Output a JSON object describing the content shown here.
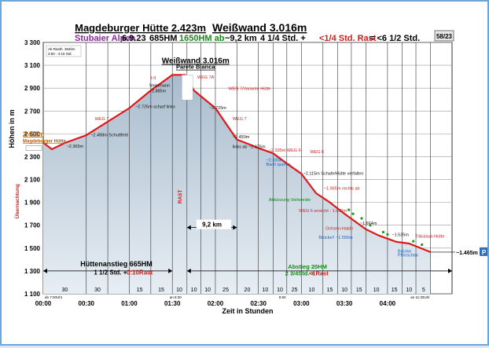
{
  "header": {
    "title_part1": "Magdeburger Hütte 2.423m",
    "title_part2": "Weißwand 3.016m",
    "area": "Stubaier Alpen",
    "date": "6.9.23",
    "hm_up": "685HM",
    "hm_down": "1650HM ab",
    "distance": "~9,2 km",
    "time_walk": "4 1/4 Std. +",
    "time_rest": "<1/4 Std. Rast",
    "time_total": "= <6 1/2 Std.",
    "page_badge": "58/23"
  },
  "info_box": {
    "line1": "Ab Rasth. 364km",
    "line2": "3:50 - 4:15 Std"
  },
  "summit_label": {
    "name": "Weißwand 3.016m",
    "subtitle": "Parete Bianca"
  },
  "start_label": {
    "alt": "2.423m",
    "name": "Magdeburger Hütte"
  },
  "sections": {
    "up_title": "Hüttenanstieg 665HM",
    "up_time1": "1 1/2 Std. +",
    "up_time2": "0:10Rast",
    "down_title": "Abstieg 20HM",
    "down_time1": "2 3/4Std. +",
    "down_time2": "<1Rast"
  },
  "chart_data": {
    "type": "area",
    "xlabel": "Zeit in Stunden",
    "ylabel": "Höhen in m",
    "xlim": [
      0,
      4.75
    ],
    "ylim": [
      1100,
      3300
    ],
    "y_ticks": [
      1100,
      1300,
      1500,
      1700,
      1900,
      2100,
      2300,
      2500,
      2700,
      2900,
      3100,
      3300
    ],
    "y_tick_labels": [
      "1 100",
      "1 300",
      "1 500",
      "1 700",
      "1 900",
      "2 100",
      "2 300",
      "2 500",
      "2 700",
      "2 900",
      "3 100",
      "3 300"
    ],
    "x_ticks": [
      0,
      0.5,
      1,
      1.5,
      2,
      2.5,
      3,
      3.5,
      4
    ],
    "x_tick_labels": [
      "00:00",
      "00:30",
      "01:00",
      "01:30",
      "02:00",
      "02:30",
      "03:00",
      "03:30",
      "04:00"
    ],
    "vlines": [
      0.5,
      0.75,
      1.0,
      1.25,
      1.5,
      1.67,
      1.83,
      2.0,
      2.25,
      2.5,
      2.67,
      2.83,
      3.0,
      3.25,
      3.42,
      3.58,
      3.75,
      4.0,
      4.17,
      4.33,
      4.5
    ],
    "profile": {
      "x": [
        0,
        0.1,
        0.25,
        0.5,
        1.0,
        1.25,
        1.5,
        1.65,
        1.75,
        2.0,
        2.25,
        2.42,
        2.5,
        2.67,
        2.83,
        3.0,
        3.17,
        3.33,
        3.5,
        3.75,
        3.9,
        4.1,
        4.25,
        4.5
      ],
      "y": [
        2423,
        2365,
        2420,
        2488,
        2725,
        2880,
        3016,
        3016,
        2880,
        2725,
        2450,
        2400,
        2375,
        2330,
        2240,
        2150,
        1980,
        1900,
        1800,
        1664,
        1610,
        1555,
        1540,
        1465
      ]
    },
    "segment_labels": [
      {
        "x": 0.63,
        "text": "30"
      },
      {
        "x": 1.12,
        "text": "15"
      },
      {
        "x": 1.37,
        "text": "15"
      },
      {
        "x": 1.58,
        "text": "10"
      },
      {
        "x": 1.75,
        "text": "10"
      },
      {
        "x": 1.91,
        "text": "10"
      },
      {
        "x": 2.12,
        "text": "25"
      },
      {
        "x": 2.37,
        "text": "20"
      },
      {
        "x": 2.58,
        "text": "10"
      },
      {
        "x": 2.75,
        "text": "10"
      },
      {
        "x": 2.92,
        "text": "25"
      },
      {
        "x": 3.12,
        "text": "10"
      },
      {
        "x": 3.33,
        "text": "15"
      },
      {
        "x": 3.5,
        "text": "10"
      },
      {
        "x": 3.67,
        "text": "15"
      },
      {
        "x": 3.87,
        "text": "10"
      },
      {
        "x": 4.08,
        "text": "15"
      },
      {
        "x": 4.25,
        "text": "10"
      },
      {
        "x": 4.42,
        "text": "5"
      },
      {
        "x": 0.25,
        "text": "30"
      }
    ],
    "annotations": [
      {
        "x": 0.27,
        "y": 2380,
        "text": "~2.365m",
        "color": "#111111"
      },
      {
        "x": 0.55,
        "y": 2478,
        "text": "~2.488m Schuttfeld",
        "color": "#111111"
      },
      {
        "x": 0.6,
        "y": 2620,
        "text": "WEG 7",
        "color": "#d22020"
      },
      {
        "x": 1.07,
        "y": 2725,
        "text": "~2.725m scharf links",
        "color": "#111111"
      },
      {
        "x": 1.23,
        "y": 2865,
        "text": "~2.885m",
        "color": "#111111"
      },
      {
        "x": 1.23,
        "y": 2910,
        "text": "Steinmann",
        "color": "#111111"
      },
      {
        "x": 1.25,
        "y": 2978,
        "text": "I-II",
        "color": "#d22020"
      },
      {
        "x": 1.79,
        "y": 2985,
        "text": "WEG 7A",
        "color": "#d22020"
      },
      {
        "x": 2.15,
        "y": 2885,
        "text": "WEG 7/Variante Hütte",
        "color": "#d22020"
      },
      {
        "x": 1.93,
        "y": 2717,
        "text": "~2.725m",
        "color": "#111111"
      },
      {
        "x": 2.2,
        "y": 2618,
        "text": "WEG 7",
        "color": "#d22020"
      },
      {
        "x": 2.2,
        "y": 2460,
        "text": "~2.450m",
        "color": "#111111"
      },
      {
        "x": 2.2,
        "y": 2375,
        "text": "links ab ~2.375m",
        "color": "#111111"
      },
      {
        "x": 2.62,
        "y": 2345,
        "text": "~2.335m WEG 6",
        "color": "#d22020"
      },
      {
        "x": 2.59,
        "y": 2260,
        "text": "~2.330m",
        "color": "#1f5fbf"
      },
      {
        "x": 2.59,
        "y": 2222,
        "text": "Bach queren",
        "color": "#1f5fbf"
      },
      {
        "x": 3.1,
        "y": 2330,
        "text": "WEG 6",
        "color": "#d22020"
      },
      {
        "x": 3.02,
        "y": 2140,
        "text": "~2.115m Schafe/Hütte verfallen",
        "color": "#111111"
      },
      {
        "x": 3.26,
        "y": 2012,
        "text": "~1.965m rechts ab",
        "color": "#d22020"
      },
      {
        "x": 2.62,
        "y": 1910,
        "text": "Abkürzung Viehweide",
        "color": "#0a8a0a"
      },
      {
        "x": 2.97,
        "y": 1815,
        "text": "WEG 6 erreicht - 1.850m",
        "color": "#d22020"
      },
      {
        "x": 3.28,
        "y": 1660,
        "text": "Ochsen-Halde",
        "color": "#d22020"
      },
      {
        "x": 3.68,
        "y": 1704,
        "text": "~1.664m",
        "color": "#111111"
      },
      {
        "x": 3.2,
        "y": 1580,
        "text": "Brücke!! ~1.555m",
        "color": "#1f5fbf"
      },
      {
        "x": 4.05,
        "y": 1606,
        "text": "~1.535m",
        "color": "#111111"
      },
      {
        "x": 4.32,
        "y": 1590,
        "text": "Tribulaun Hütte",
        "color": "#d22020"
      },
      {
        "x": 4.12,
        "y": 1460,
        "text": "Brücke",
        "color": "#1f5fbf"
      },
      {
        "x": 4.12,
        "y": 1428,
        "text": "Pflerschtal",
        "color": "#1f5fbf"
      }
    ],
    "bottom_notes": [
      {
        "x": 0.0,
        "text": "ab 7:00Uhr"
      },
      {
        "x": 1.45,
        "text": "an 8:30"
      },
      {
        "x": 2.72,
        "text": "9:50"
      },
      {
        "x": 4.25,
        "text": "an 11:30Uhr"
      }
    ],
    "end_label": "~1.465m",
    "end_badge": "P",
    "distance_label": "9,2 km",
    "side_note_left": "Übernachtung",
    "side_note_rast": "RAST",
    "area_fill": "#b8c8d6",
    "line_color": "#e01818",
    "grid": true
  }
}
